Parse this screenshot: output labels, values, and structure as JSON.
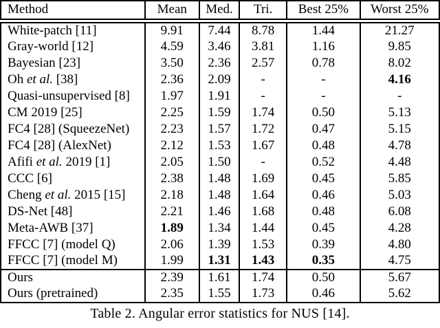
{
  "caption": "Table 2. Angular error statistics for NUS [14].",
  "table": {
    "columns": [
      "Method",
      "Mean",
      "Med.",
      "Tri.",
      "Best 25%",
      "Worst 25%"
    ],
    "groups": [
      {
        "rows": [
          {
            "method": [
              {
                "t": "White-patch [11]"
              }
            ],
            "values": [
              {
                "t": "9.91"
              },
              {
                "t": "7.44"
              },
              {
                "t": "8.78"
              },
              {
                "t": "1.44"
              },
              {
                "t": "21.27"
              }
            ]
          },
          {
            "method": [
              {
                "t": "Gray-world [12]"
              }
            ],
            "values": [
              {
                "t": "4.59"
              },
              {
                "t": "3.46"
              },
              {
                "t": "3.81"
              },
              {
                "t": "1.16"
              },
              {
                "t": "9.85"
              }
            ]
          },
          {
            "method": [
              {
                "t": "Bayesian [23]"
              }
            ],
            "values": [
              {
                "t": "3.50"
              },
              {
                "t": "2.36"
              },
              {
                "t": "2.57"
              },
              {
                "t": "0.78"
              },
              {
                "t": "8.02"
              }
            ]
          },
          {
            "method": [
              {
                "t": "Oh "
              },
              {
                "t": "et al.",
                "i": true
              },
              {
                "t": " [38]"
              }
            ],
            "values": [
              {
                "t": "2.36"
              },
              {
                "t": "2.09"
              },
              {
                "t": "-"
              },
              {
                "t": "-"
              },
              {
                "t": "4.16",
                "b": true
              }
            ]
          },
          {
            "method": [
              {
                "t": "Quasi-unsupervised [8]"
              }
            ],
            "values": [
              {
                "t": "1.97"
              },
              {
                "t": "1.91"
              },
              {
                "t": "-"
              },
              {
                "t": "-"
              },
              {
                "t": "-"
              }
            ]
          },
          {
            "method": [
              {
                "t": "CM 2019 [25]"
              }
            ],
            "values": [
              {
                "t": "2.25"
              },
              {
                "t": "1.59"
              },
              {
                "t": "1.74"
              },
              {
                "t": "0.50"
              },
              {
                "t": "5.13"
              }
            ]
          },
          {
            "method": [
              {
                "t": "FC4 [28] (SqueezeNet)"
              }
            ],
            "values": [
              {
                "t": "2.23"
              },
              {
                "t": "1.57"
              },
              {
                "t": "1.72"
              },
              {
                "t": "0.47"
              },
              {
                "t": "5.15"
              }
            ]
          },
          {
            "method": [
              {
                "t": "FC4 [28] (AlexNet)"
              }
            ],
            "values": [
              {
                "t": "2.12"
              },
              {
                "t": "1.53"
              },
              {
                "t": "1.67"
              },
              {
                "t": "0.48"
              },
              {
                "t": "4.78"
              }
            ]
          },
          {
            "method": [
              {
                "t": "Afifi "
              },
              {
                "t": "et al.",
                "i": true
              },
              {
                "t": " 2019 [1]"
              }
            ],
            "values": [
              {
                "t": "2.05"
              },
              {
                "t": "1.50"
              },
              {
                "t": "-"
              },
              {
                "t": "0.52"
              },
              {
                "t": "4.48"
              }
            ]
          },
          {
            "method": [
              {
                "t": "CCC [6]"
              }
            ],
            "values": [
              {
                "t": "2.38"
              },
              {
                "t": "1.48"
              },
              {
                "t": "1.69"
              },
              {
                "t": "0.45"
              },
              {
                "t": "5.85"
              }
            ]
          },
          {
            "method": [
              {
                "t": "Cheng "
              },
              {
                "t": "et al.",
                "i": true
              },
              {
                "t": " 2015 [15]"
              }
            ],
            "values": [
              {
                "t": "2.18"
              },
              {
                "t": "1.48"
              },
              {
                "t": "1.64"
              },
              {
                "t": "0.46"
              },
              {
                "t": "5.03"
              }
            ]
          },
          {
            "method": [
              {
                "t": "DS-Net [48]"
              }
            ],
            "values": [
              {
                "t": "2.21"
              },
              {
                "t": "1.46"
              },
              {
                "t": "1.68"
              },
              {
                "t": "0.48"
              },
              {
                "t": "6.08"
              }
            ]
          },
          {
            "method": [
              {
                "t": "Meta-AWB [37]"
              }
            ],
            "values": [
              {
                "t": "1.89",
                "b": true
              },
              {
                "t": "1.34"
              },
              {
                "t": "1.44"
              },
              {
                "t": "0.45"
              },
              {
                "t": "4.28"
              }
            ]
          },
          {
            "method": [
              {
                "t": "FFCC [7] (model Q)"
              }
            ],
            "values": [
              {
                "t": "2.06"
              },
              {
                "t": "1.39"
              },
              {
                "t": "1.53"
              },
              {
                "t": "0.39"
              },
              {
                "t": "4.80"
              }
            ]
          },
          {
            "method": [
              {
                "t": "FFCC [7] (model M)"
              }
            ],
            "values": [
              {
                "t": "1.99"
              },
              {
                "t": "1.31",
                "b": true
              },
              {
                "t": "1.43",
                "b": true
              },
              {
                "t": "0.35",
                "b": true
              },
              {
                "t": "4.75"
              }
            ]
          }
        ]
      },
      {
        "rows": [
          {
            "method": [
              {
                "t": "Ours"
              }
            ],
            "values": [
              {
                "t": "2.39"
              },
              {
                "t": "1.61"
              },
              {
                "t": "1.74"
              },
              {
                "t": "0.50"
              },
              {
                "t": "5.67"
              }
            ]
          },
          {
            "method": [
              {
                "t": "Ours (pretrained)"
              }
            ],
            "values": [
              {
                "t": "2.35"
              },
              {
                "t": "1.55"
              },
              {
                "t": "1.73"
              },
              {
                "t": "0.46"
              },
              {
                "t": "5.62"
              }
            ]
          }
        ]
      }
    ]
  }
}
